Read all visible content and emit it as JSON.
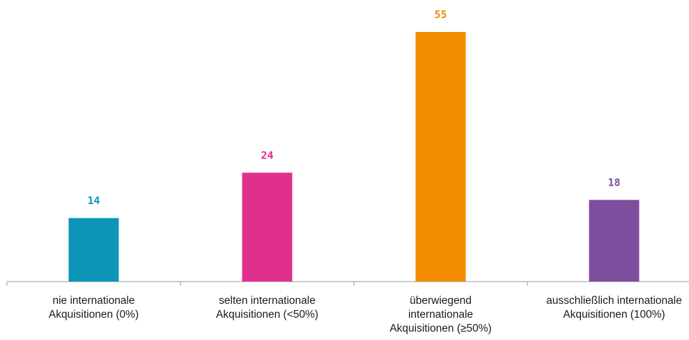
{
  "chart_data": {
    "type": "bar",
    "categories": [
      [
        "nie internationale",
        "Akquisitionen (0%)"
      ],
      [
        "selten internationale",
        "Akquisitionen (<50%)"
      ],
      [
        "überwiegend",
        "internationale",
        "Akquisitionen (≥50%)"
      ],
      [
        "ausschließlich internationale",
        "Akquisitionen (100%)"
      ]
    ],
    "values": [
      14,
      24,
      55,
      18
    ],
    "colors": [
      "#0d95b8",
      "#e0308e",
      "#f28c00",
      "#7e4e9e"
    ],
    "title": "",
    "xlabel": "",
    "ylabel": "",
    "ylim": [
      0,
      55
    ],
    "grid": false,
    "legend": "none"
  }
}
